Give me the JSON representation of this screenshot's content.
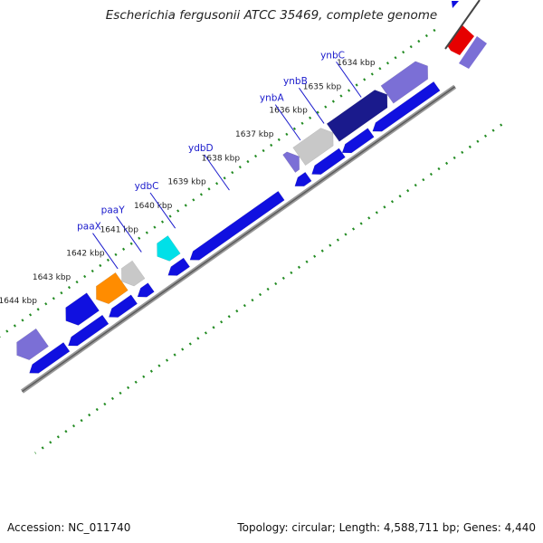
{
  "header": {
    "title": "Escherichia fergusonii ATCC 35469, complete genome"
  },
  "footer": {
    "accession": "Accession: NC_011740",
    "topology": "Topology: circular; Length: 4,588,711 bp; Genes: 4,440"
  },
  "ruler": {
    "unit": "kbp",
    "ticks": [
      {
        "pos": 1634,
        "label": "1634 kbp"
      },
      {
        "pos": 1635,
        "label": "1635 kbp"
      },
      {
        "pos": 1636,
        "label": "1636 kbp"
      },
      {
        "pos": 1637,
        "label": "1637 kbp"
      },
      {
        "pos": 1638,
        "label": "1638 kbp"
      },
      {
        "pos": 1639,
        "label": "1639 kbp"
      },
      {
        "pos": 1640,
        "label": "1640 kbp"
      },
      {
        "pos": 1641,
        "label": "1641 kbp"
      },
      {
        "pos": 1642,
        "label": "1642 kbp"
      },
      {
        "pos": 1643,
        "label": "1643 kbp"
      },
      {
        "pos": 1644,
        "label": "1644 kbp"
      }
    ]
  },
  "gene_labels": [
    {
      "name": "ynbC",
      "at": 1634.8
    },
    {
      "name": "ynbB",
      "at": 1635.9
    },
    {
      "name": "ynbA",
      "at": 1636.6
    },
    {
      "name": "ydbD",
      "at": 1638.7
    },
    {
      "name": "ydbC",
      "at": 1640.3
    },
    {
      "name": "paaY",
      "at": 1641.3
    },
    {
      "name": "paaX",
      "at": 1642.0
    }
  ],
  "features": [
    {
      "track": "outer",
      "start": 1633.05,
      "end": 1634.25,
      "color": "#7b6fd6",
      "strand": "-"
    },
    {
      "track": "outer",
      "start": 1634.25,
      "end": 1635.85,
      "color": "#1a1a8c",
      "strand": "-"
    },
    {
      "track": "outer",
      "start": 1635.85,
      "end": 1636.85,
      "color": "#c8c8c8",
      "strand": "-"
    },
    {
      "track": "outer",
      "start": 1636.85,
      "end": 1637.15,
      "color": "#7b6fd6",
      "strand": "-"
    },
    {
      "track": "outer",
      "start": 1640.55,
      "end": 1641.05,
      "color": "#00e0e8",
      "strand": "+"
    },
    {
      "track": "outer",
      "start": 1641.6,
      "end": 1642.1,
      "color": "#c8c8c8",
      "strand": "+"
    },
    {
      "track": "outer",
      "start": 1642.1,
      "end": 1642.85,
      "color": "#ff8c00",
      "strand": "+"
    },
    {
      "track": "outer",
      "start": 1642.95,
      "end": 1643.75,
      "color": "#1010e0",
      "strand": "+"
    },
    {
      "track": "outer",
      "start": 1644.45,
      "end": 1645.2,
      "color": "#7b6fd6",
      "strand": "+"
    },
    {
      "track": "inner",
      "start": 1633.15,
      "end": 1635.05,
      "color": "#1010e0",
      "strand": "+"
    },
    {
      "track": "inner",
      "start": 1635.1,
      "end": 1635.95,
      "color": "#1010e0",
      "strand": "+"
    },
    {
      "track": "inner",
      "start": 1635.95,
      "end": 1636.85,
      "color": "#1010e0",
      "strand": "+"
    },
    {
      "track": "inner",
      "start": 1636.95,
      "end": 1637.35,
      "color": "#1010e0",
      "strand": "+"
    },
    {
      "track": "inner",
      "start": 1637.75,
      "end": 1640.45,
      "color": "#1010e0",
      "strand": "+"
    },
    {
      "track": "inner",
      "start": 1640.55,
      "end": 1641.1,
      "color": "#1010e0",
      "strand": "+"
    },
    {
      "track": "inner",
      "start": 1641.6,
      "end": 1642.0,
      "color": "#1010e0",
      "strand": "+"
    },
    {
      "track": "inner",
      "start": 1642.1,
      "end": 1642.85,
      "color": "#1010e0",
      "strand": "+"
    },
    {
      "track": "inner",
      "start": 1642.95,
      "end": 1644.05,
      "color": "#1010e0",
      "strand": "+"
    },
    {
      "track": "inner",
      "start": 1644.1,
      "end": 1645.2,
      "color": "#1010e0",
      "strand": "+"
    }
  ],
  "other_features": [
    {
      "color": "#e60000"
    },
    {
      "color": "#7b6fd6"
    }
  ]
}
